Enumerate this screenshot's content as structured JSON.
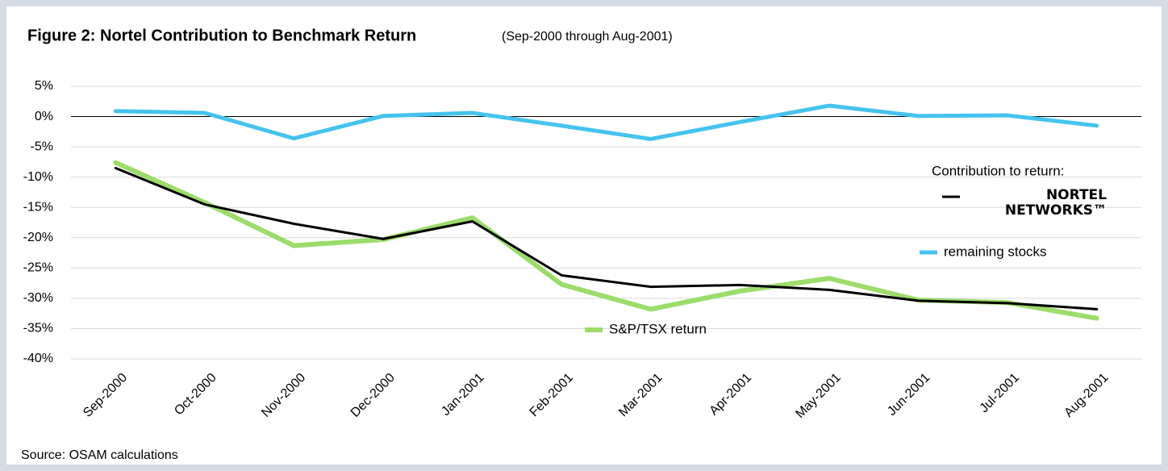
{
  "chart_data": {
    "type": "line",
    "title": "Figure 2: Nortel Contribution to Benchmark Return",
    "subtitle": "(Sep-2000 through Aug-2001)",
    "source": "Source: OSAM calculations",
    "legend_title": "Contribution to return:",
    "categories": [
      "Sep-2000",
      "Oct-2000",
      "Nov-2000",
      "Dec-2000",
      "Jan-2001",
      "Feb-2001",
      "Mar-2001",
      "Apr-2001",
      "May-2001",
      "Jun-2001",
      "Jul-2001",
      "Aug-2001"
    ],
    "series": [
      {
        "name": "NORTEL NETWORKS™",
        "color": "#000000",
        "width": 3,
        "values": [
          -8.5,
          -14.5,
          -17.7,
          -20.2,
          -17.3,
          -26.2,
          -28.1,
          -27.8,
          -28.6,
          -30.4,
          -30.8,
          -31.8
        ]
      },
      {
        "name": "remaining stocks",
        "color": "#45c3ee",
        "width": 5,
        "values": [
          0.9,
          0.6,
          -3.6,
          0.1,
          0.6,
          -1.5,
          -3.7,
          -0.9,
          1.8,
          0.1,
          0.2,
          -1.5
        ]
      },
      {
        "name": "S&P/TSX return",
        "color": "#9bdc6a",
        "width": 6,
        "values": [
          -7.6,
          -14.2,
          -21.3,
          -20.3,
          -16.7,
          -27.7,
          -31.8,
          -28.8,
          -26.7,
          -30.3,
          -30.7,
          -33.3
        ]
      }
    ],
    "ylim": [
      -40,
      5
    ],
    "yticks": [
      {
        "value": 5,
        "label": "5%"
      },
      {
        "value": 0,
        "label": "0%"
      },
      {
        "value": -5,
        "label": "-5%"
      },
      {
        "value": -10,
        "label": "-10%"
      },
      {
        "value": -15,
        "label": "-15%"
      },
      {
        "value": -20,
        "label": "-20%"
      },
      {
        "value": -25,
        "label": "-25%"
      },
      {
        "value": -30,
        "label": "-30%"
      },
      {
        "value": -35,
        "label": "-35%"
      },
      {
        "value": -40,
        "label": "-40%"
      }
    ],
    "grid": true
  }
}
